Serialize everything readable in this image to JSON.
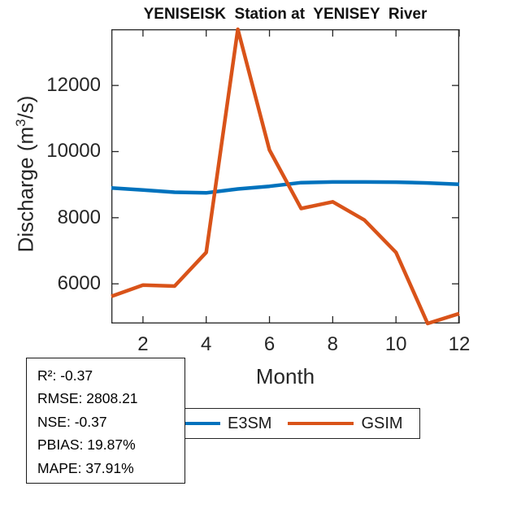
{
  "title": "YENISEISK  Station at  YENISEY  River",
  "axes": {
    "xlabel": "Month",
    "ylabel_prefix": "Discharge (m",
    "ylabel_sup": "3",
    "ylabel_suffix": "/s)"
  },
  "chart_data": {
    "type": "line",
    "title": "YENISEISK  Station at  YENISEY  River",
    "xlabel": "Month",
    "ylabel": "Discharge (m³/s)",
    "x": [
      1,
      2,
      3,
      4,
      5,
      6,
      7,
      8,
      9,
      10,
      11,
      12
    ],
    "series": [
      {
        "name": "E3SM",
        "color": "#0072BD",
        "values": [
          8900,
          8840,
          8770,
          8750,
          8870,
          8950,
          9060,
          9080,
          9080,
          9075,
          9050,
          9010
        ]
      },
      {
        "name": "GSIM",
        "color": "#D95319",
        "values": [
          5620,
          5960,
          5930,
          6950,
          13700,
          10050,
          8280,
          8480,
          7930,
          6950,
          4800,
          5100
        ]
      }
    ],
    "xlim": [
      1,
      12
    ],
    "ylim": [
      4800,
      13700
    ],
    "x_ticks": [
      2,
      4,
      6,
      8,
      10,
      12
    ],
    "y_ticks": [
      6000,
      8000,
      10000,
      12000
    ],
    "grid": false,
    "legend_position": "below"
  },
  "legend": {
    "entries": [
      {
        "label": "E3SM",
        "color": "#0072BD"
      },
      {
        "label": "GSIM",
        "color": "#D95319"
      }
    ]
  },
  "stats": {
    "lines": [
      "R²: -0.37",
      "RMSE: 2808.21",
      "NSE: -0.37",
      "PBIAS: 19.87%",
      "MAPE: 37.91%"
    ]
  },
  "colors": {
    "axis": "#262626",
    "background": "#ffffff"
  }
}
